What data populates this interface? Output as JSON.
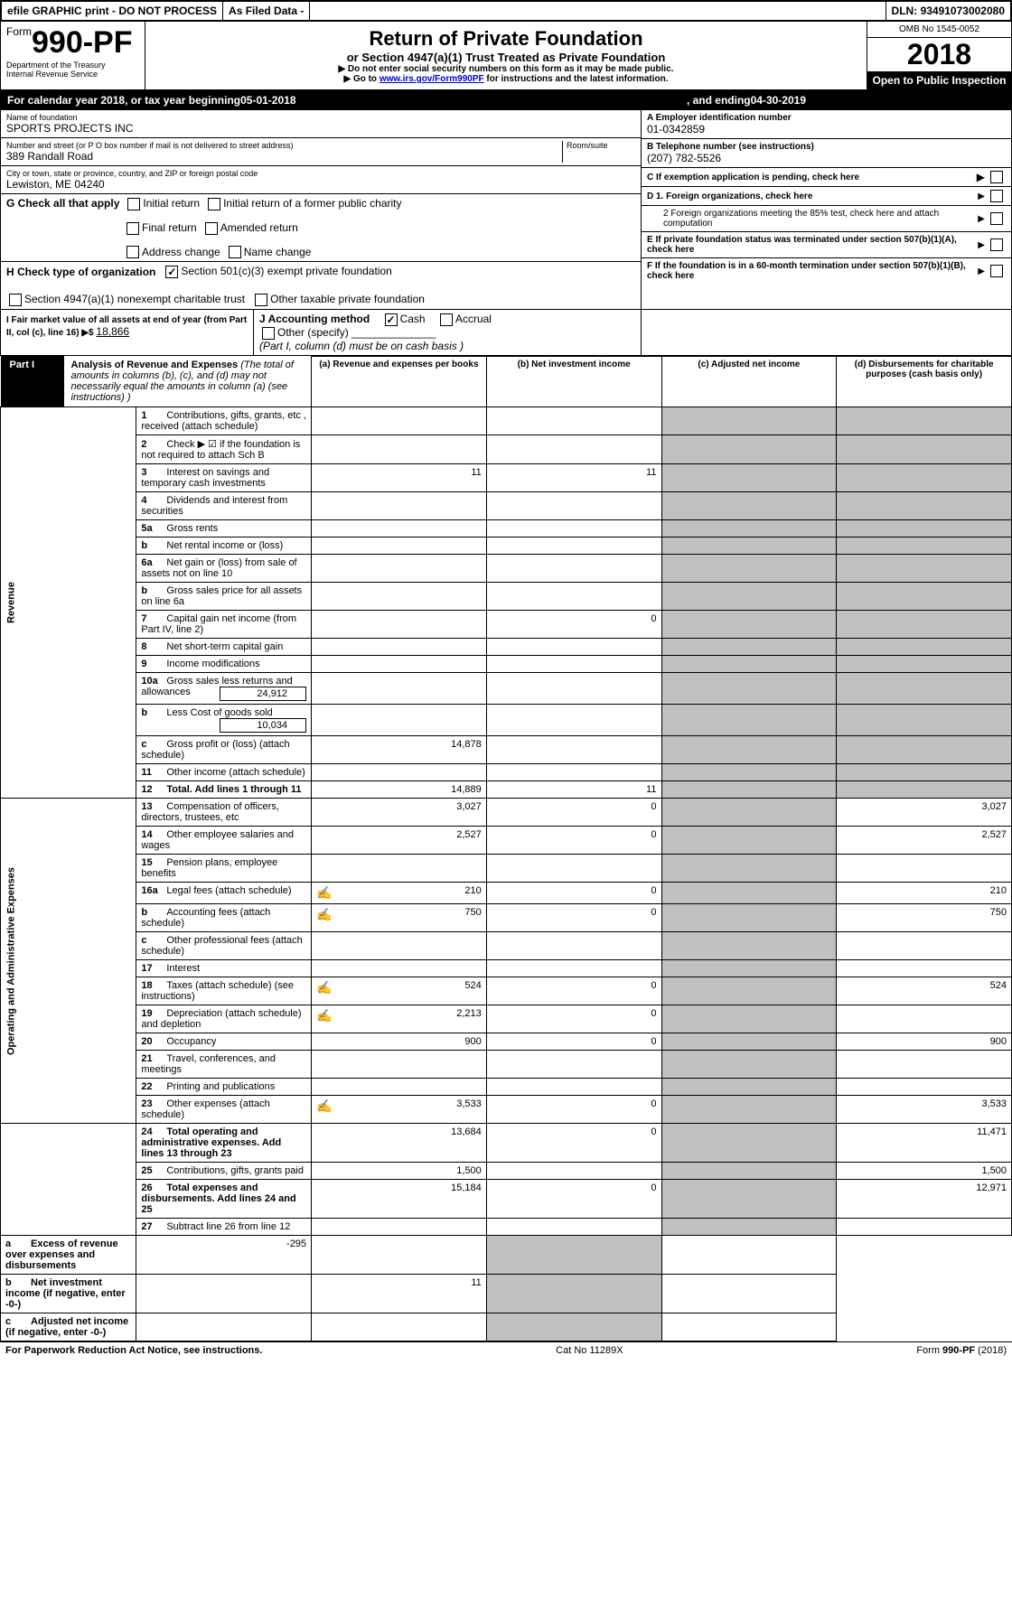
{
  "efile": {
    "text1": "efile GRAPHIC print - DO NOT PROCESS",
    "text2": "As Filed Data -",
    "dln_label": "DLN:",
    "dln": "93491073002080"
  },
  "header": {
    "form_prefix": "Form",
    "form_num": "990-PF",
    "dept": "Department of the Treasury",
    "irs": "Internal Revenue Service",
    "title": "Return of Private Foundation",
    "subtitle": "or Section 4947(a)(1) Trust Treated as Private Foundation",
    "warn1": "▶ Do not enter social security numbers on this form as it may be made public.",
    "warn2_pre": "▶ Go to ",
    "warn2_link": "www.irs.gov/Form990PF",
    "warn2_post": " for instructions and the latest information.",
    "omb": "OMB No 1545-0052",
    "year": "2018",
    "inspect": "Open to Public Inspection"
  },
  "cal": {
    "pre": "For calendar year 2018, or tax year beginning ",
    "begin": "05-01-2018",
    "mid": ", and ending ",
    "end": "04-30-2019"
  },
  "info": {
    "name_label": "Name of foundation",
    "name": "SPORTS PROJECTS INC",
    "addr_label": "Number and street (or P O  box number if mail is not delivered to street address)",
    "room_label": "Room/suite",
    "addr": "389 Randall Road",
    "city_label": "City or town, state or province, country, and ZIP or foreign postal code",
    "city": "Lewiston, ME  04240",
    "a_label": "A Employer identification number",
    "a_val": "01-0342859",
    "b_label": "B Telephone number (see instructions)",
    "b_val": "(207) 782-5526",
    "c_label": "C If exemption application is pending, check here",
    "d1": "D 1. Foreign organizations, check here",
    "d2": "2  Foreign organizations meeting the 85% test, check here and attach computation",
    "e_label": "E  If private foundation status was terminated under section 507(b)(1)(A), check here",
    "f_label": "F  If the foundation is in a 60-month termination under section 507(b)(1)(B), check here"
  },
  "g": {
    "label": "G Check all that apply",
    "opts": [
      "Initial return",
      "Initial return of a former public charity",
      "Final return",
      "Amended return",
      "Address change",
      "Name change"
    ]
  },
  "h": {
    "label": "H Check type of organization",
    "opt1": "Section 501(c)(3) exempt private foundation",
    "opt2": "Section 4947(a)(1) nonexempt charitable trust",
    "opt3": "Other taxable private foundation"
  },
  "i": {
    "label": "I Fair market value of all assets at end of year (from Part II, col  (c), line 16) ▶$ ",
    "val": "18,866"
  },
  "j": {
    "label": "J Accounting method",
    "cash": "Cash",
    "accrual": "Accrual",
    "other": "Other (specify)",
    "note": "(Part I, column (d) must be on cash basis )"
  },
  "part1": {
    "label": "Part I",
    "title": "Analysis of Revenue and Expenses",
    "desc": "(The total of amounts in columns (b), (c), and (d) may not necessarily equal the amounts in column (a) (see instructions) )",
    "col_a": "(a)   Revenue and expenses per books",
    "col_b": "(b)  Net investment income",
    "col_c": "(c)  Adjusted net income",
    "col_d": "(d)  Disbursements for charitable purposes (cash basis only)"
  },
  "sections": {
    "revenue": "Revenue",
    "expenses": "Operating and Administrative Expenses"
  },
  "rows": [
    {
      "n": "1",
      "d": "Contributions, gifts, grants, etc , received (attach schedule)"
    },
    {
      "n": "2",
      "d": "Check ▶ ☑ if the foundation is not required to attach Sch  B",
      "checkmark": true,
      "not_bold": "not"
    },
    {
      "n": "3",
      "d": "Interest on savings and temporary cash investments",
      "a": "11",
      "b": "11"
    },
    {
      "n": "4",
      "d": "Dividends and interest from securities"
    },
    {
      "n": "5a",
      "d": "Gross rents"
    },
    {
      "n": "b",
      "d": "Net rental income or (loss)"
    },
    {
      "n": "6a",
      "d": "Net gain or (loss) from sale of assets not on line 10"
    },
    {
      "n": "b",
      "d": "Gross sales price for all assets on line 6a"
    },
    {
      "n": "7",
      "d": "Capital gain net income (from Part IV, line 2)",
      "b": "0"
    },
    {
      "n": "8",
      "d": "Net short-term capital gain"
    },
    {
      "n": "9",
      "d": "Income modifications"
    },
    {
      "n": "10a",
      "d": "Gross sales less returns and allowances",
      "extra": "24,912"
    },
    {
      "n": "b",
      "d": "Less  Cost of goods sold",
      "extra": "10,034"
    },
    {
      "n": "c",
      "d": "Gross profit or (loss) (attach schedule)",
      "a": "14,878"
    },
    {
      "n": "11",
      "d": "Other income (attach schedule)"
    },
    {
      "n": "12",
      "d": "Total. Add lines 1 through 11",
      "bold": true,
      "a": "14,889",
      "b": "11"
    },
    {
      "n": "13",
      "d": "Compensation of officers, directors, trustees, etc",
      "a": "3,027",
      "b": "0",
      "dd": "3,027"
    },
    {
      "n": "14",
      "d": "Other employee salaries and wages",
      "a": "2,527",
      "b": "0",
      "dd": "2,527"
    },
    {
      "n": "15",
      "d": "Pension plans, employee benefits"
    },
    {
      "n": "16a",
      "d": "Legal fees (attach schedule)",
      "icon": true,
      "a": "210",
      "b": "0",
      "dd": "210"
    },
    {
      "n": "b",
      "d": "Accounting fees (attach schedule)",
      "icon": true,
      "a": "750",
      "b": "0",
      "dd": "750"
    },
    {
      "n": "c",
      "d": "Other professional fees (attach schedule)"
    },
    {
      "n": "17",
      "d": "Interest"
    },
    {
      "n": "18",
      "d": "Taxes (attach schedule) (see instructions)",
      "icon": true,
      "a": "524",
      "b": "0",
      "dd": "524"
    },
    {
      "n": "19",
      "d": "Depreciation (attach schedule) and depletion",
      "icon": true,
      "a": "2,213",
      "b": "0"
    },
    {
      "n": "20",
      "d": "Occupancy",
      "a": "900",
      "b": "0",
      "dd": "900"
    },
    {
      "n": "21",
      "d": "Travel, conferences, and meetings"
    },
    {
      "n": "22",
      "d": "Printing and publications"
    },
    {
      "n": "23",
      "d": "Other expenses (attach schedule)",
      "icon": true,
      "a": "3,533",
      "b": "0",
      "dd": "3,533"
    },
    {
      "n": "24",
      "d": "Total operating and administrative expenses. Add lines 13 through 23",
      "bold": true,
      "a": "13,684",
      "b": "0",
      "dd": "11,471"
    },
    {
      "n": "25",
      "d": "Contributions, gifts, grants paid",
      "a": "1,500",
      "dd": "1,500"
    },
    {
      "n": "26",
      "d": "Total expenses and disbursements. Add lines 24 and 25",
      "bold": true,
      "a": "15,184",
      "b": "0",
      "dd": "12,971"
    },
    {
      "n": "27",
      "d": "Subtract line 26 from line 12"
    },
    {
      "n": "a",
      "d": "Excess of revenue over expenses and disbursements",
      "bold": true,
      "a": "-295"
    },
    {
      "n": "b",
      "d": "Net investment income (if negative, enter -0-)",
      "bold": true,
      "b": "11"
    },
    {
      "n": "c",
      "d": "Adjusted net income (if negative, enter -0-)",
      "bold": true
    }
  ],
  "footer": {
    "left": "For Paperwork Reduction Act Notice, see instructions.",
    "mid": "Cat  No  11289X",
    "right": "Form 990-PF (2018)"
  }
}
